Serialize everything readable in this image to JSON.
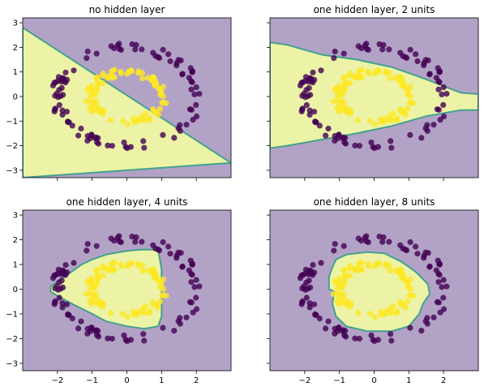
{
  "chart_data": [
    {
      "type": "scatter",
      "title": "no hidden layer",
      "xlim": [
        -3,
        3
      ],
      "ylim": [
        -3.3,
        3.2
      ],
      "x_ticks": [
        -2,
        -1,
        0,
        1,
        2
      ],
      "y_ticks": [
        -3,
        -2,
        -1,
        0,
        1,
        2,
        3
      ],
      "show_x_tick_labels": false,
      "show_y_tick_labels": true,
      "region_positive": [
        [
          -3,
          2.8
        ],
        [
          3,
          -2.7
        ],
        [
          -3,
          -3.3
        ]
      ]
    },
    {
      "type": "scatter",
      "title": "one hidden layer, 2 units",
      "xlim": [
        -3,
        3
      ],
      "ylim": [
        -3.3,
        3.2
      ],
      "x_ticks": [
        -2,
        -1,
        0,
        1,
        2
      ],
      "y_ticks": [
        -3,
        -2,
        -1,
        0,
        1,
        2,
        3
      ],
      "show_x_tick_labels": false,
      "show_y_tick_labels": false,
      "region_positive": [
        [
          -3,
          2.2
        ],
        [
          -2.5,
          2.1
        ],
        [
          -1.5,
          1.7
        ],
        [
          -0.5,
          1.5
        ],
        [
          0.5,
          1.2
        ],
        [
          1.5,
          0.7
        ],
        [
          2.5,
          0.15
        ],
        [
          3,
          0.1
        ],
        [
          3,
          -0.55
        ],
        [
          2.5,
          -0.55
        ],
        [
          1.5,
          -0.8
        ],
        [
          0.5,
          -1.2
        ],
        [
          -0.5,
          -1.5
        ],
        [
          -1.5,
          -1.75
        ],
        [
          -2.5,
          -2.0
        ],
        [
          -3,
          -2.1
        ]
      ]
    },
    {
      "type": "scatter",
      "title": "one hidden layer, 4 units",
      "xlim": [
        -3,
        3
      ],
      "ylim": [
        -3.3,
        3.2
      ],
      "x_ticks": [
        -2,
        -1,
        0,
        1,
        2
      ],
      "y_ticks": [
        -3,
        -2,
        -1,
        0,
        1,
        2,
        3
      ],
      "show_x_tick_labels": true,
      "show_y_tick_labels": true,
      "region_positive": [
        [
          -2.2,
          0.1
        ],
        [
          -1.9,
          0.4
        ],
        [
          -1.6,
          0.7
        ],
        [
          -1.3,
          1.0
        ],
        [
          -1.0,
          1.2
        ],
        [
          -0.6,
          1.4
        ],
        [
          0.0,
          1.55
        ],
        [
          0.4,
          1.6
        ],
        [
          0.9,
          1.6
        ],
        [
          1.0,
          0.8
        ],
        [
          1.0,
          -0.4
        ],
        [
          1.0,
          -1.1
        ],
        [
          0.9,
          -1.5
        ],
        [
          0.5,
          -1.6
        ],
        [
          0.0,
          -1.5
        ],
        [
          -0.6,
          -1.3
        ],
        [
          -1.0,
          -1.0
        ],
        [
          -1.5,
          -0.65
        ],
        [
          -1.9,
          -0.35
        ],
        [
          -2.2,
          -0.1
        ]
      ]
    },
    {
      "type": "scatter",
      "title": "one hidden layer, 8 units",
      "xlim": [
        -3,
        3
      ],
      "ylim": [
        -3.3,
        3.2
      ],
      "x_ticks": [
        -2,
        -1,
        0,
        1,
        2
      ],
      "y_ticks": [
        -3,
        -2,
        -1,
        0,
        1,
        2,
        3
      ],
      "show_x_tick_labels": true,
      "show_y_tick_labels": false,
      "region_positive": [
        [
          -1.1,
          1.2
        ],
        [
          -0.8,
          1.4
        ],
        [
          -0.2,
          1.5
        ],
        [
          0.3,
          1.45
        ],
        [
          0.8,
          1.1
        ],
        [
          1.2,
          0.7
        ],
        [
          1.55,
          0.2
        ],
        [
          1.6,
          -0.2
        ],
        [
          1.4,
          -0.6
        ],
        [
          1.3,
          -1.0
        ],
        [
          1.0,
          -1.5
        ],
        [
          0.5,
          -1.7
        ],
        [
          -0.2,
          -1.7
        ],
        [
          -0.8,
          -1.5
        ],
        [
          -1.1,
          -1.1
        ],
        [
          -1.2,
          -0.6
        ],
        [
          -1.15,
          -0.1
        ],
        [
          -1.3,
          0.0
        ],
        [
          -1.3,
          0.5
        ],
        [
          -1.2,
          0.9
        ]
      ]
    }
  ]
}
